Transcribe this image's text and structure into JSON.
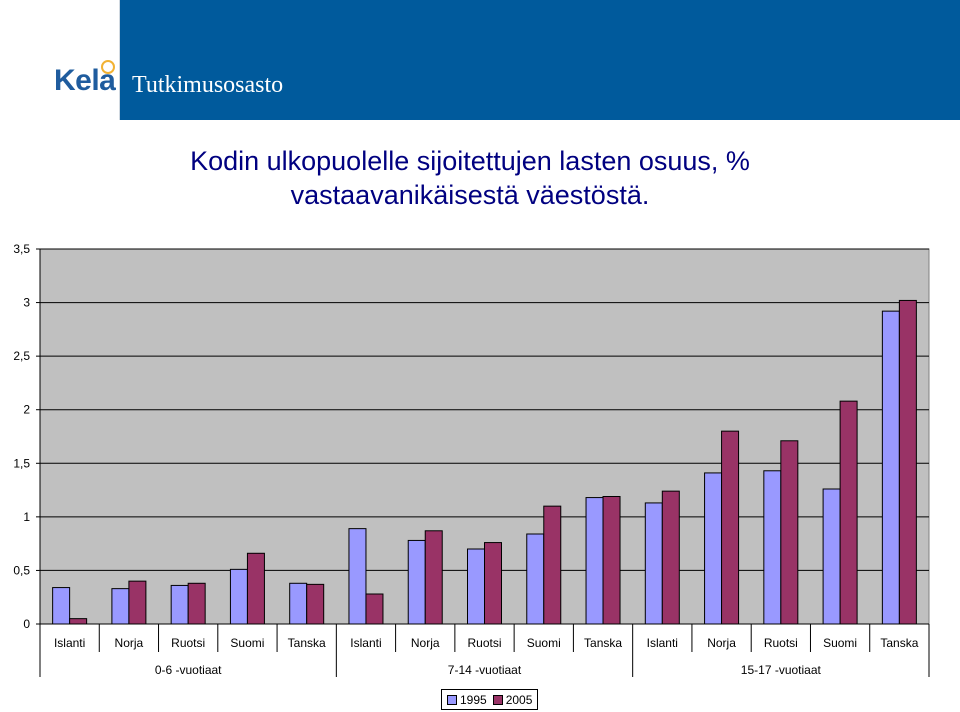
{
  "header": {
    "logo_text": "Kela",
    "department": "Tutkimusosasto"
  },
  "chart_data": {
    "type": "bar",
    "title_lines": [
      "Kodin ulkopuolelle sijoitettujen lasten osuus, %",
      "vastaavanikäisestä väestöstä."
    ],
    "groups": [
      {
        "label": "0-6 -vuotiaat",
        "categories": [
          "Islanti",
          "Norja",
          "Ruotsi",
          "Suomi",
          "Tanska"
        ]
      },
      {
        "label": "7-14 -vuotiaat",
        "categories": [
          "Islanti",
          "Norja",
          "Ruotsi",
          "Suomi",
          "Tanska"
        ]
      },
      {
        "label": "15-17 -vuotiaat",
        "categories": [
          "Islanti",
          "Norja",
          "Ruotsi",
          "Suomi",
          "Tanska"
        ]
      }
    ],
    "series": [
      {
        "name": "1995",
        "color": "#9999ff",
        "values": [
          0.34,
          0.33,
          0.36,
          0.51,
          0.38,
          0.89,
          0.78,
          0.7,
          0.84,
          1.18,
          1.13,
          1.41,
          1.43,
          1.26,
          2.92
        ]
      },
      {
        "name": "2005",
        "color": "#993366",
        "values": [
          0.05,
          0.4,
          0.38,
          0.66,
          0.37,
          0.28,
          0.87,
          0.76,
          1.1,
          1.19,
          1.24,
          1.8,
          1.71,
          2.08,
          3.02
        ]
      }
    ],
    "y_ticks": [
      "0",
      "0,5",
      "1",
      "1,5",
      "2",
      "2,5",
      "3",
      "3,5"
    ],
    "ylim": [
      0,
      3.5
    ],
    "grid": true,
    "legend_position": "bottom-center"
  }
}
